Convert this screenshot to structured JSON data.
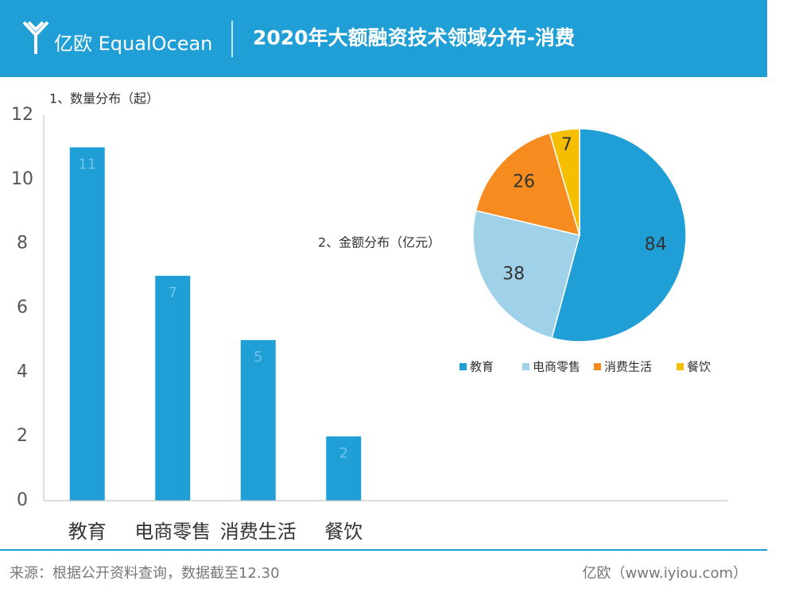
{
  "header": {
    "logo": "亿欧 EqualOcean",
    "title": "2020年大额融资技术领域分布-消费"
  },
  "chart_data": [
    {
      "type": "bar",
      "title": "1、数量分布（起）",
      "categories": [
        "教育",
        "电商零售",
        "消费生活",
        "餐饮"
      ],
      "values": [
        11,
        7,
        5,
        2
      ],
      "color": "#1f9fd5",
      "ylim": [
        0,
        12
      ],
      "yticks": [
        0,
        2,
        4,
        6,
        8,
        10,
        12
      ],
      "grid": false
    },
    {
      "type": "pie",
      "title": "2、金额分布（亿元）",
      "categories": [
        "教育",
        "电商零售",
        "消费生活",
        "餐饮"
      ],
      "values": [
        84,
        38,
        26,
        7
      ],
      "colors": [
        "#1f9fd5",
        "#9fd2e8",
        "#f68b1f",
        "#f5bf00"
      ],
      "legend": "bottom"
    }
  ],
  "footer": {
    "source": "来源：根据公开资料查询，数据截至12.30",
    "site": "亿欧（www.iyiou.com）"
  }
}
